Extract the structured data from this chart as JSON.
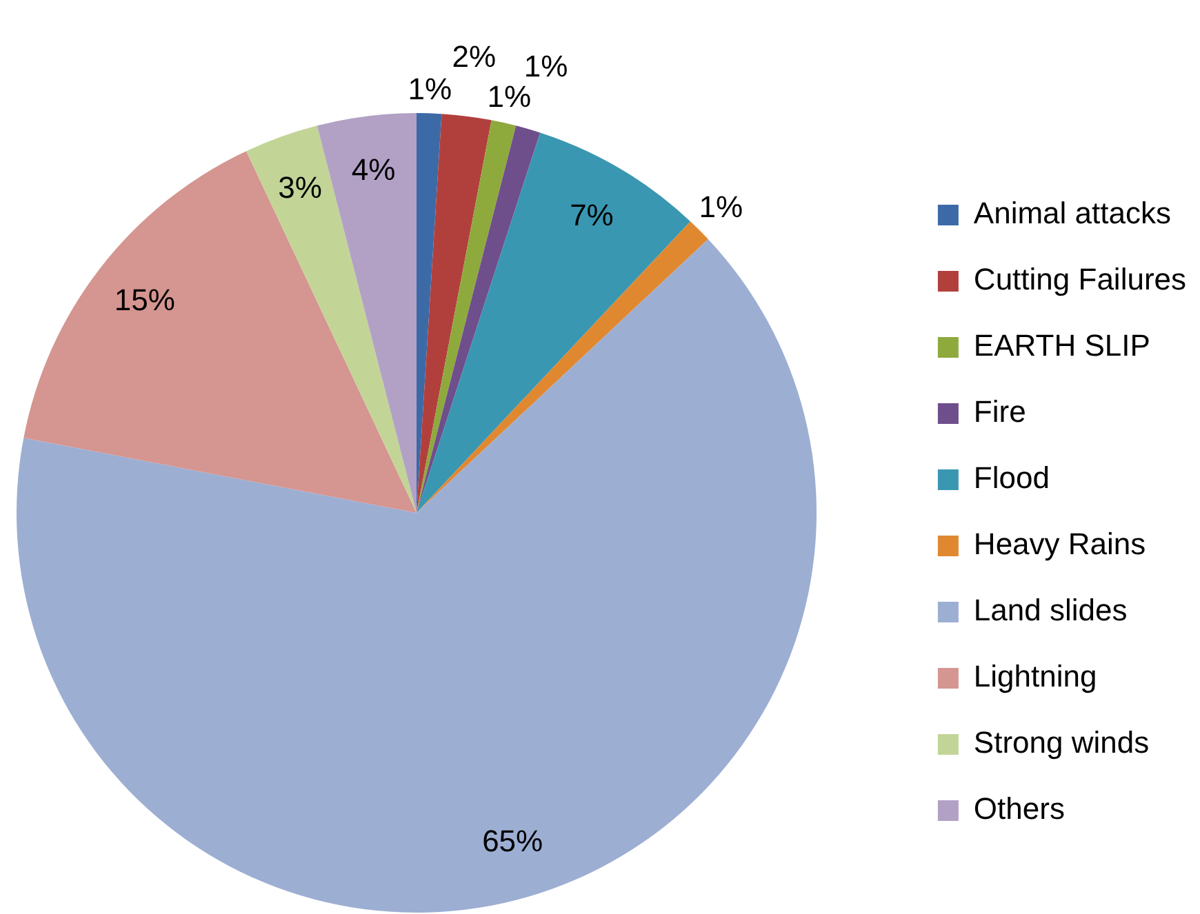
{
  "chart_data": {
    "type": "pie",
    "categories": [
      "Animal attacks",
      "Cutting Failures",
      "EARTH SLIP",
      "Fire",
      "Flood",
      "Heavy Rains",
      "Land slides",
      "Lightning",
      "Strong winds",
      "Others"
    ],
    "values": [
      1,
      2,
      1,
      1,
      7,
      1,
      65,
      15,
      3,
      4
    ],
    "colors": [
      "#3c6aa7",
      "#b1403d",
      "#8eaa3d",
      "#6f4e8c",
      "#3a97b1",
      "#e08830",
      "#9daed3",
      "#d59590",
      "#c2d597",
      "#b2a1c5"
    ],
    "value_labels": [
      "1%",
      "2%",
      "1%",
      "1%",
      "7%",
      "1%",
      "65%",
      "15%",
      "3%",
      "4%"
    ],
    "legend": "right"
  }
}
